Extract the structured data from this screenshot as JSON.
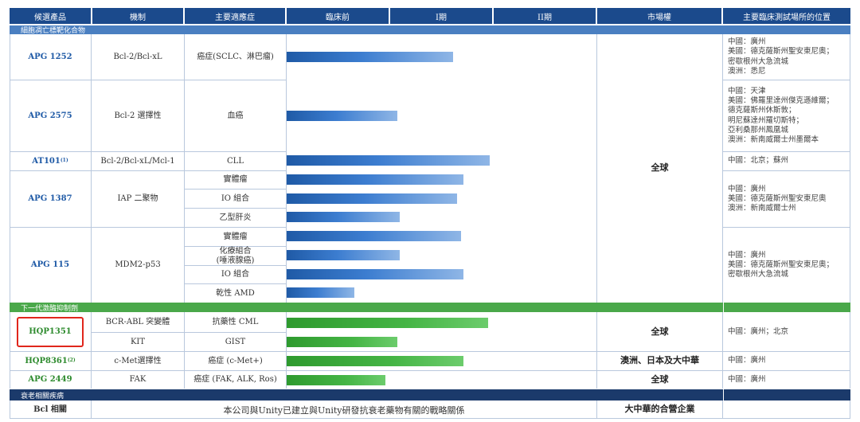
{
  "header": {
    "cols": [
      "候選產品",
      "機制",
      "主要適應症",
      "臨床前",
      "I期",
      "II期",
      "市場權",
      "主要臨床測試場所的位置"
    ]
  },
  "colors": {
    "header": "#1b4a8c",
    "section_blue": "#4a7fc1",
    "section_green": "#4aa84a",
    "section_dark": "#1b3a6b",
    "highlight": "#e0261c"
  },
  "sections": {
    "s1": "細胞凋亡標靶化合物",
    "s2": "下一代激酶抑制劑",
    "s3": "衰老相關疾病"
  },
  "rows": {
    "apg1252": {
      "name": "APG 1252",
      "mech": "Bcl-2/Bcl-xL",
      "ind": "癌症(SCLC、淋巴瘤)",
      "progress": 0.81,
      "loc": [
        "中國：廣州",
        "美國：德克薩斯州聖安東尼奧；",
        "密歇根州大急流城",
        "澳洲：悉尼"
      ]
    },
    "apg2575": {
      "name": "APG 2575",
      "mech": "Bcl-2 選擇性",
      "ind": "血癌",
      "progress": 0.54,
      "loc": [
        "中國：天津",
        "美國：佛羅里達州傑克遜維爾；",
        "德克薩斯州休斯敦；",
        "明尼蘇達州羅切斯特；",
        "亞利桑那州鳳凰城",
        "澳洲：新南威爾士州墨爾本"
      ]
    },
    "at101": {
      "name": "AT101",
      "sup": "(1)",
      "mech": "Bcl-2/Bcl-xL/Mcl-1",
      "ind": "CLL",
      "progress": 0.99,
      "loc": [
        "中國：北京；蘇州"
      ]
    },
    "apg1387": {
      "name": "APG 1387",
      "mech": "IAP 二聚物",
      "inds": [
        {
          "label": "實體瘤",
          "progress": 0.86
        },
        {
          "label": "IO 組合",
          "progress": 0.83
        },
        {
          "label": "乙型肝炎",
          "progress": 0.55
        }
      ],
      "loc": [
        "中國：廣州",
        "美國：德克薩斯州聖安東尼奧",
        "澳洲：新南威爾士州"
      ]
    },
    "apg115": {
      "name": "APG 115",
      "mech": "MDM2-p53",
      "inds": [
        {
          "label": "實體瘤",
          "progress": 0.85
        },
        {
          "label": "化療組合",
          "label2": "(唾液腺癌)",
          "progress": 0.55
        },
        {
          "label": "IO 組合",
          "progress": 0.86
        },
        {
          "label": "乾性 AMD",
          "progress": 0.33
        }
      ],
      "loc": [
        "中國：廣州",
        "美國：德克薩斯州聖安東尼奧；",
        "密歇根州大急流城"
      ]
    },
    "hqp1351": {
      "name": "HQP1351",
      "sub": [
        {
          "mech": "BCR-ABL 突變體",
          "ind": "抗藥性 CML",
          "progress": 0.98
        },
        {
          "mech": "KIT",
          "ind": "GIST",
          "progress": 0.54
        }
      ],
      "loc": [
        "中國：廣州；北京"
      ]
    },
    "hqp8361": {
      "name": "HQP8361",
      "sup": "(2)",
      "mech": "c-Met選擇性",
      "ind": "癌症 (c-Met+)",
      "progress": 0.86,
      "loc": [
        "中國：廣州"
      ]
    },
    "apg2449": {
      "name": "APG 2449",
      "mech": "FAK",
      "ind": "癌症 (FAK, ALK, Ros)",
      "progress": 0.48,
      "loc": [
        "中國：廣州"
      ]
    },
    "bcl": {
      "name": "Bcl 相關",
      "text": "本公司與Unity已建立與Unity研發抗衰老藥物有關的戰略關係"
    }
  },
  "market": {
    "global": "全球",
    "global2": "全球",
    "regional": "澳洲、日本及大中華",
    "global3": "全球",
    "jv": "大中華的合營企業"
  }
}
